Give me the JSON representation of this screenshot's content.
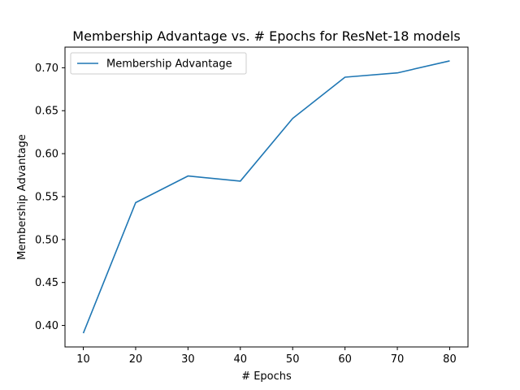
{
  "chart_data": {
    "type": "line",
    "title": "Membership Advantage vs. # Epochs for ResNet-18 models",
    "xlabel": "# Epochs",
    "ylabel": "Membership Advantage",
    "x": [
      10,
      20,
      30,
      40,
      50,
      60,
      70,
      80
    ],
    "series": [
      {
        "name": "Membership Advantage",
        "color": "#1f77b4",
        "values": [
          0.391,
          0.543,
          0.574,
          0.568,
          0.641,
          0.689,
          0.694,
          0.708
        ]
      }
    ],
    "xlim": [
      6.5,
      83.5
    ],
    "ylim": [
      0.375,
      0.724
    ],
    "xticks": [
      "10",
      "20",
      "30",
      "40",
      "50",
      "60",
      "70",
      "80"
    ],
    "yticks": [
      "0.40",
      "0.45",
      "0.50",
      "0.55",
      "0.60",
      "0.65",
      "0.70"
    ],
    "grid": false,
    "legend_position": "upper-left"
  }
}
